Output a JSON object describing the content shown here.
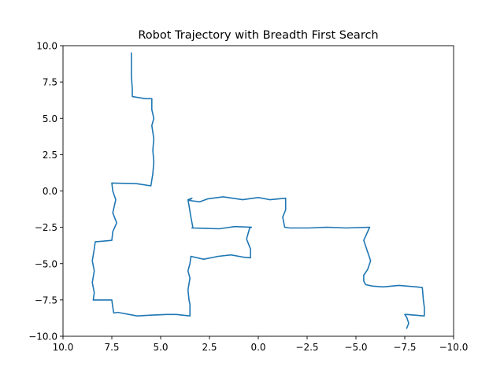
{
  "chart_data": {
    "type": "line",
    "title": "Robot Trajectory with Breadth First Search",
    "xlabel": "",
    "ylabel": "",
    "xlim": [
      10.0,
      -10.0
    ],
    "ylim": [
      -10.0,
      10.0
    ],
    "x_inverted": true,
    "grid": false,
    "legend": "none",
    "xticks": [
      "10.0",
      "7.5",
      "5.0",
      "2.5",
      "0.0",
      "−2.5",
      "−5.0",
      "−7.5",
      "−10.0"
    ],
    "xtick_values": [
      10,
      7.5,
      5,
      2.5,
      0,
      -2.5,
      -5,
      -7.5,
      -10
    ],
    "yticks": [
      "10.0",
      "7.5",
      "5.0",
      "2.5",
      "0.0",
      "−2.5",
      "−5.0",
      "−7.5",
      "−10.0"
    ],
    "ytick_values": [
      10,
      7.5,
      5,
      2.5,
      0,
      -2.5,
      -5,
      -7.5,
      -10
    ],
    "line_color": "#1f77b4",
    "series": [
      {
        "x": [
          6.5,
          6.5,
          6.45,
          6.45,
          5.8,
          5.45,
          5.45,
          5.35,
          5.45,
          5.35,
          5.4,
          5.35,
          5.4,
          5.5,
          6.2,
          7.5,
          7.45,
          7.3,
          7.45,
          7.25,
          7.45,
          7.5,
          8.35,
          8.4,
          8.5,
          8.4,
          8.5,
          8.4,
          8.45,
          8.45,
          8.4,
          7.5,
          7.45,
          7.4,
          7.2,
          6.2,
          5.5,
          4.7,
          4.2,
          3.5,
          3.5,
          3.55,
          3.6,
          3.5,
          3.6,
          3.5,
          3.45,
          2.8,
          2.05,
          1.4,
          0.8,
          0.4,
          0.4,
          0.6,
          0.45,
          0.45,
          0.35,
          1.2,
          2.0,
          3.4,
          3.35,
          3.45,
          3.5,
          3.55,
          3.6,
          3.4,
          3.55,
          3.0,
          2.6,
          1.8,
          0.8,
          0.0,
          -0.6,
          -1.4,
          -1.4,
          -1.25,
          -1.35,
          -1.6,
          -2.6,
          -3.5,
          -4.5,
          -5.7,
          -5.6,
          -5.4,
          -5.55,
          -5.75,
          -5.6,
          -5.4,
          -5.4,
          -5.5,
          -5.85,
          -6.4,
          -7.2,
          -8.1,
          -8.4,
          -8.45,
          -8.5,
          -8.5,
          -7.6,
          -7.5,
          -7.6,
          -7.7,
          -7.6
        ],
        "y": [
          9.5,
          8.0,
          7.0,
          6.5,
          6.35,
          6.35,
          5.6,
          5.0,
          4.5,
          3.6,
          2.8,
          2.0,
          1.2,
          0.35,
          0.5,
          0.55,
          0.0,
          -0.6,
          -1.5,
          -2.2,
          -2.8,
          -3.4,
          -3.5,
          -4.0,
          -4.8,
          -5.5,
          -6.3,
          -7.0,
          -7.5,
          -7.5,
          -7.5,
          -7.5,
          -8.0,
          -8.4,
          -8.35,
          -8.6,
          -8.55,
          -8.5,
          -8.5,
          -8.6,
          -7.8,
          -7.5,
          -6.8,
          -6.0,
          -5.5,
          -5.0,
          -4.5,
          -4.7,
          -4.5,
          -4.4,
          -4.55,
          -4.6,
          -4.0,
          -3.3,
          -2.6,
          -2.55,
          -2.5,
          -2.45,
          -2.6,
          -2.55,
          -2.5,
          -1.8,
          -1.4,
          -1.0,
          -0.6,
          -0.5,
          -0.65,
          -0.75,
          -0.55,
          -0.4,
          -0.6,
          -0.45,
          -0.6,
          -0.5,
          -1.3,
          -1.8,
          -2.5,
          -2.55,
          -2.55,
          -2.5,
          -2.55,
          -2.5,
          -2.8,
          -3.4,
          -4.0,
          -4.8,
          -5.4,
          -5.8,
          -6.2,
          -6.45,
          -6.55,
          -6.6,
          -6.5,
          -6.6,
          -6.65,
          -7.5,
          -8.0,
          -8.6,
          -8.5,
          -8.5,
          -8.7,
          -9.1,
          -9.45
        ]
      }
    ]
  }
}
